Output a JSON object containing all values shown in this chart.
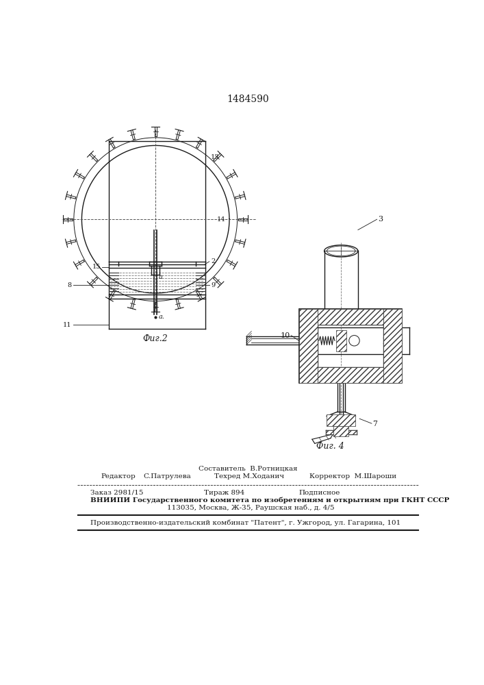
{
  "title_number": "1484590",
  "fig2_caption": "Фиг.2",
  "fig4_caption": "Фиг. 4",
  "label_13": "13",
  "label_14": "14",
  "label_15": "15",
  "label_2": "2",
  "label_8": "8",
  "label_9": "9",
  "label_11": "11",
  "label_a1": "a",
  "label_a2": "a.",
  "label_10": "10",
  "label_3": "3",
  "label_7": "7",
  "footer_line1": "Составитель  В.Ротницкая",
  "footer_line2_r": "Редактор",
  "footer_line2_re": "С.Патрулева",
  "footer_line2_t": "Техред М.Ходанич",
  "footer_line2_k": "Корректор  М.Шароши",
  "footer_line3_z": "Заказ 2981/15",
  "footer_line3_t": "Тираж 894",
  "footer_line3_p": "Подписное",
  "footer_line4": "ВНИИПИ Государственного комитета по изобретениям и открытиям при ГКНТ СССР",
  "footer_line5": "113035, Москва, Ж-35, Раушская наб., д. 4/5",
  "footer_line6": "Производственно-издательский комбинат \"Патент\", г. Ужгород, ул. Гагарина, 101",
  "bg_color": "#ffffff",
  "line_color": "#1a1a1a"
}
